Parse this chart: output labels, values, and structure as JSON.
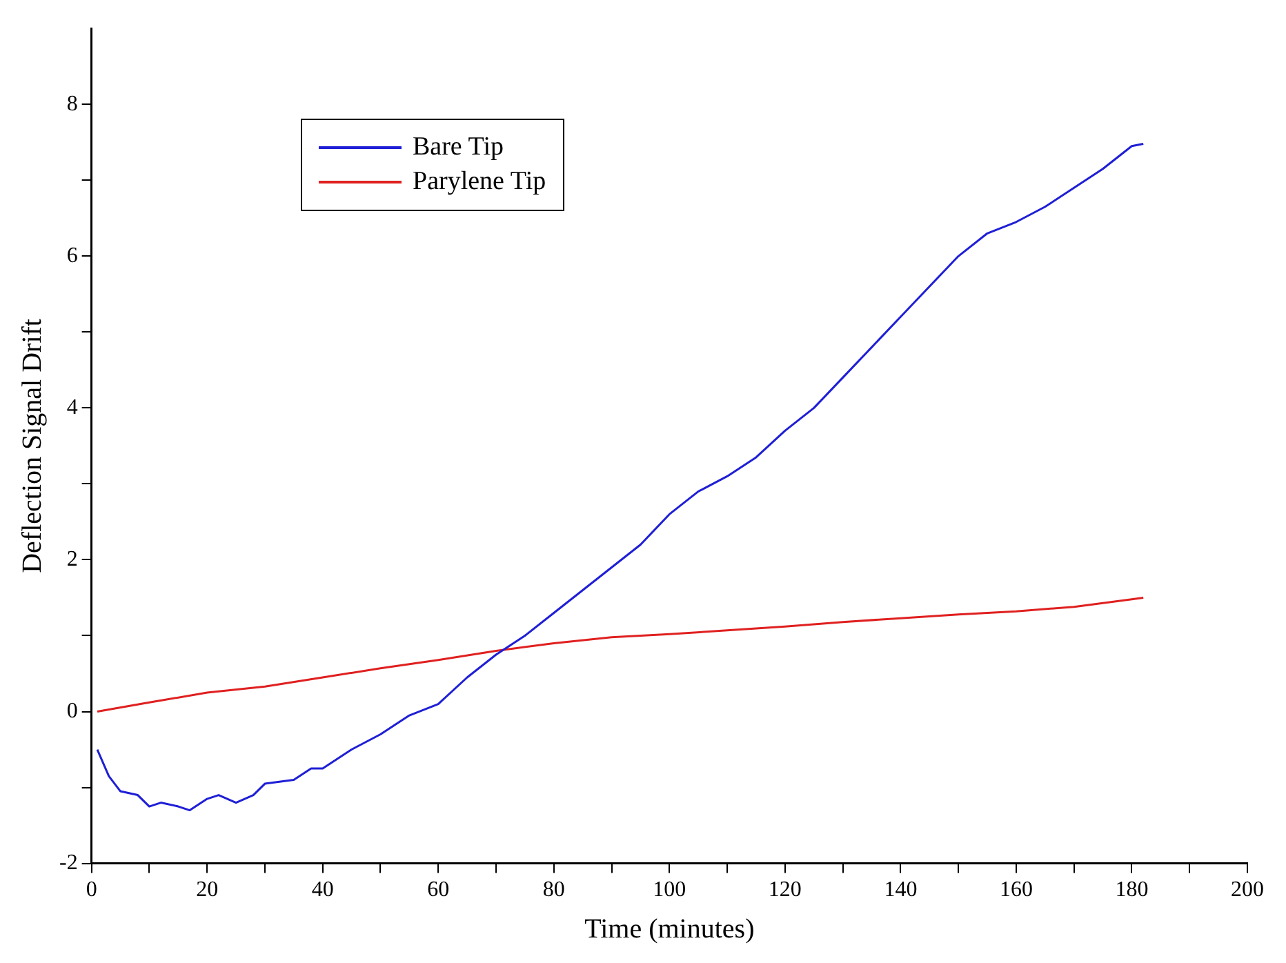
{
  "chart_data": {
    "type": "line",
    "xlabel": "Time (minutes)",
    "ylabel": "Deflection Signal Drift",
    "xlim": [
      0,
      200
    ],
    "ylim": [
      -2,
      9
    ],
    "xticks": [
      0,
      {
        "value": 10,
        "label": null
      },
      20,
      {
        "value": 30,
        "label": null
      },
      40,
      {
        "value": 50,
        "label": null
      },
      60,
      {
        "value": 70,
        "label": null
      },
      80,
      {
        "value": 90,
        "label": null
      },
      100,
      {
        "value": 110,
        "label": null
      },
      120,
      {
        "value": 130,
        "label": null
      },
      140,
      {
        "value": 150,
        "label": null
      },
      160,
      {
        "value": 170,
        "label": null
      },
      180,
      {
        "value": 190,
        "label": null
      },
      200
    ],
    "yticks": [
      -2,
      {
        "value": -1,
        "label": null
      },
      0,
      {
        "value": 1,
        "label": null
      },
      2,
      {
        "value": 3,
        "label": null
      },
      4,
      {
        "value": 5,
        "label": null
      },
      6,
      {
        "value": 7,
        "label": null
      },
      8
    ],
    "grid": false,
    "legend": "top left",
    "marker": "none",
    "line_style": "solid",
    "series": [
      {
        "name": "Bare Tip",
        "color": "#1f1fd6",
        "x": [
          1,
          3,
          5,
          8,
          10,
          12,
          15,
          17,
          20,
          22,
          25,
          28,
          30,
          35,
          38,
          40,
          45,
          50,
          55,
          60,
          65,
          70,
          75,
          80,
          85,
          90,
          95,
          100,
          105,
          110,
          115,
          120,
          125,
          130,
          135,
          140,
          145,
          150,
          155,
          160,
          165,
          170,
          175,
          180,
          182
        ],
        "values": [
          -0.5,
          -0.85,
          -1.05,
          -1.1,
          -1.25,
          -1.2,
          -1.25,
          -1.3,
          -1.15,
          -1.1,
          -1.2,
          -1.1,
          -0.95,
          -0.9,
          -0.75,
          -0.75,
          -0.5,
          -0.3,
          -0.05,
          0.1,
          0.45,
          0.75,
          1.0,
          1.3,
          1.6,
          1.9,
          2.2,
          2.6,
          2.9,
          3.1,
          3.35,
          3.7,
          4.0,
          4.4,
          4.8,
          5.2,
          5.6,
          6.0,
          6.3,
          6.45,
          6.65,
          6.9,
          7.15,
          7.45,
          7.48
        ]
      },
      {
        "name": "Parylene Tip",
        "color": "#e02020",
        "x": [
          1,
          10,
          20,
          30,
          40,
          50,
          60,
          70,
          80,
          90,
          100,
          110,
          120,
          130,
          140,
          150,
          160,
          170,
          180,
          182
        ],
        "values": [
          0,
          0.12,
          0.25,
          0.33,
          0.45,
          0.57,
          0.68,
          0.8,
          0.9,
          0.98,
          1.02,
          1.07,
          1.12,
          1.18,
          1.23,
          1.28,
          1.32,
          1.38,
          1.48,
          1.5
        ]
      }
    ]
  }
}
